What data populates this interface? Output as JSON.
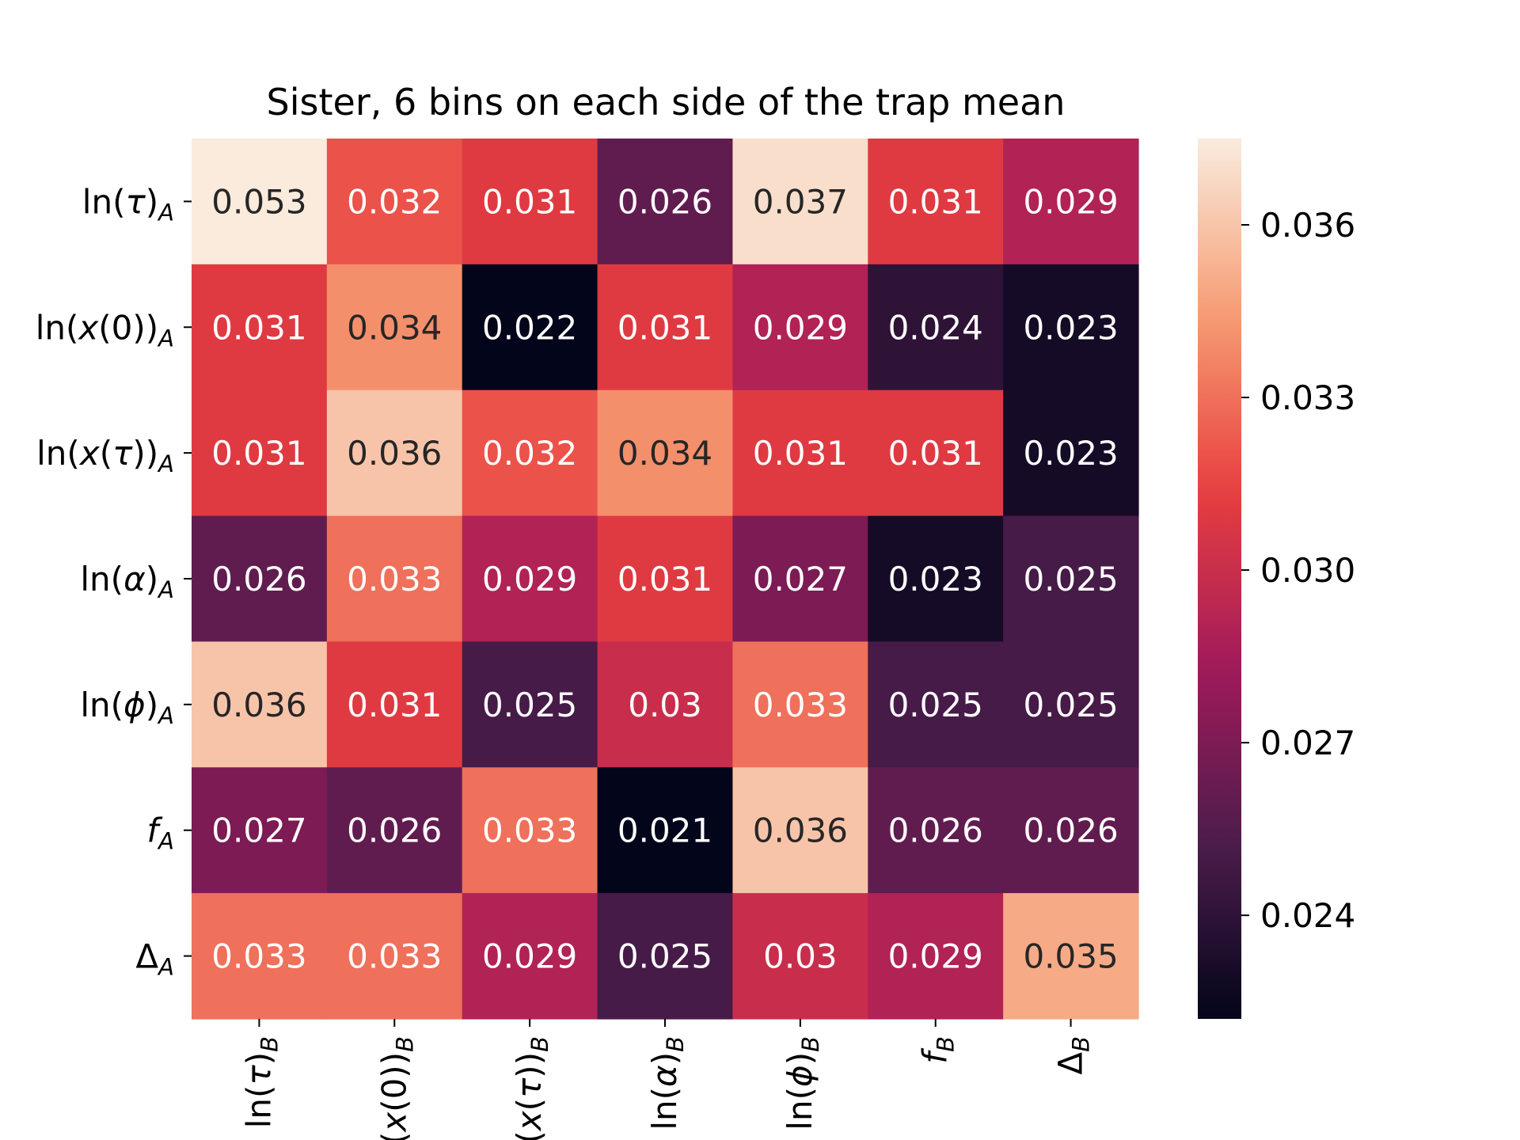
{
  "chart_data": {
    "type": "heatmap",
    "title": "Sister, 6 bins on each side of the trap mean",
    "row_labels": [
      {
        "base": "ln(",
        "var": "τ",
        "close": ")",
        "sub": "A"
      },
      {
        "base": "ln(",
        "var": "x",
        "mid": "(0))",
        "sub": "A"
      },
      {
        "base": "ln(",
        "var": "x",
        "mid": "(",
        "var2": "τ",
        "close": "))",
        "sub": "A"
      },
      {
        "base": "ln(",
        "var": "α",
        "close": ")",
        "sub": "A"
      },
      {
        "base": "ln(",
        "var": "ϕ",
        "close": ")",
        "sub": "A"
      },
      {
        "var": "f",
        "sub": "A"
      },
      {
        "base": "Δ",
        "sub": "A"
      }
    ],
    "col_labels": [
      {
        "base": "ln(",
        "var": "τ",
        "close": ")",
        "sub": "B"
      },
      {
        "base": "ln(",
        "var": "x",
        "mid": "(0))",
        "sub": "B"
      },
      {
        "base": "ln(",
        "var": "x",
        "mid": "(",
        "var2": "τ",
        "close": "))",
        "sub": "B"
      },
      {
        "base": "ln(",
        "var": "α",
        "close": ")",
        "sub": "B"
      },
      {
        "base": "ln(",
        "var": "ϕ",
        "close": ")",
        "sub": "B"
      },
      {
        "var": "f",
        "sub": "B"
      },
      {
        "base": "Δ",
        "sub": "B"
      }
    ],
    "values": [
      [
        0.053,
        0.032,
        0.031,
        0.026,
        0.037,
        0.031,
        0.029
      ],
      [
        0.031,
        0.034,
        0.022,
        0.031,
        0.029,
        0.024,
        0.023
      ],
      [
        0.031,
        0.036,
        0.032,
        0.034,
        0.031,
        0.031,
        0.023
      ],
      [
        0.026,
        0.033,
        0.029,
        0.031,
        0.027,
        0.023,
        0.025
      ],
      [
        0.036,
        0.031,
        0.025,
        0.03,
        0.033,
        0.025,
        0.025
      ],
      [
        0.027,
        0.026,
        0.033,
        0.021,
        0.036,
        0.026,
        0.026
      ],
      [
        0.033,
        0.033,
        0.029,
        0.025,
        0.03,
        0.029,
        0.035
      ]
    ],
    "cell_text": [
      [
        "0.053",
        "0.032",
        "0.031",
        "0.026",
        "0.037",
        "0.031",
        "0.029"
      ],
      [
        "0.031",
        "0.034",
        "0.022",
        "0.031",
        "0.029",
        "0.024",
        "0.023"
      ],
      [
        "0.031",
        "0.036",
        "0.032",
        "0.034",
        "0.031",
        "0.031",
        "0.023"
      ],
      [
        "0.026",
        "0.033",
        "0.029",
        "0.031",
        "0.027",
        "0.023",
        "0.025"
      ],
      [
        "0.036",
        "0.031",
        "0.025",
        "0.03",
        "0.033",
        "0.025",
        "0.025"
      ],
      [
        "0.027",
        "0.026",
        "0.033",
        "0.021",
        "0.036",
        "0.026",
        "0.026"
      ],
      [
        "0.033",
        "0.033",
        "0.029",
        "0.025",
        "0.03",
        "0.029",
        "0.035"
      ]
    ],
    "colorbar": {
      "vmin": 0.0222,
      "vmax": 0.0375,
      "ticks": [
        0.024,
        0.027,
        0.03,
        0.033,
        0.036
      ],
      "tick_labels": [
        "0.024",
        "0.027",
        "0.030",
        "0.033",
        "0.036"
      ],
      "colormap": "rocket",
      "colormap_stops": [
        "#03051a",
        "#4c1d4b",
        "#a11a5b",
        "#e83f3f",
        "#f69c73",
        "#faebdd"
      ]
    },
    "grid": false,
    "legend": "colorbar-right"
  }
}
